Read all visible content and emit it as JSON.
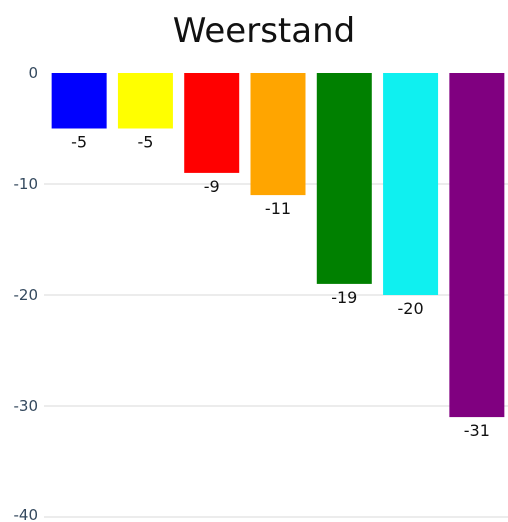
{
  "chart_data": {
    "type": "bar",
    "title": "Weerstand",
    "xlabel": "",
    "ylabel": "",
    "ylim": [
      -40,
      0
    ],
    "yticks": [
      0,
      -10,
      -20,
      -30,
      -40
    ],
    "grid": true,
    "legend": "none",
    "values": [
      -5,
      -5,
      -9,
      -11,
      -19,
      -20,
      -31
    ],
    "colors": [
      "#0000ff",
      "#ffff00",
      "#ff0000",
      "#ffa500",
      "#008000",
      "#0ff0f0",
      "#800080"
    ]
  }
}
